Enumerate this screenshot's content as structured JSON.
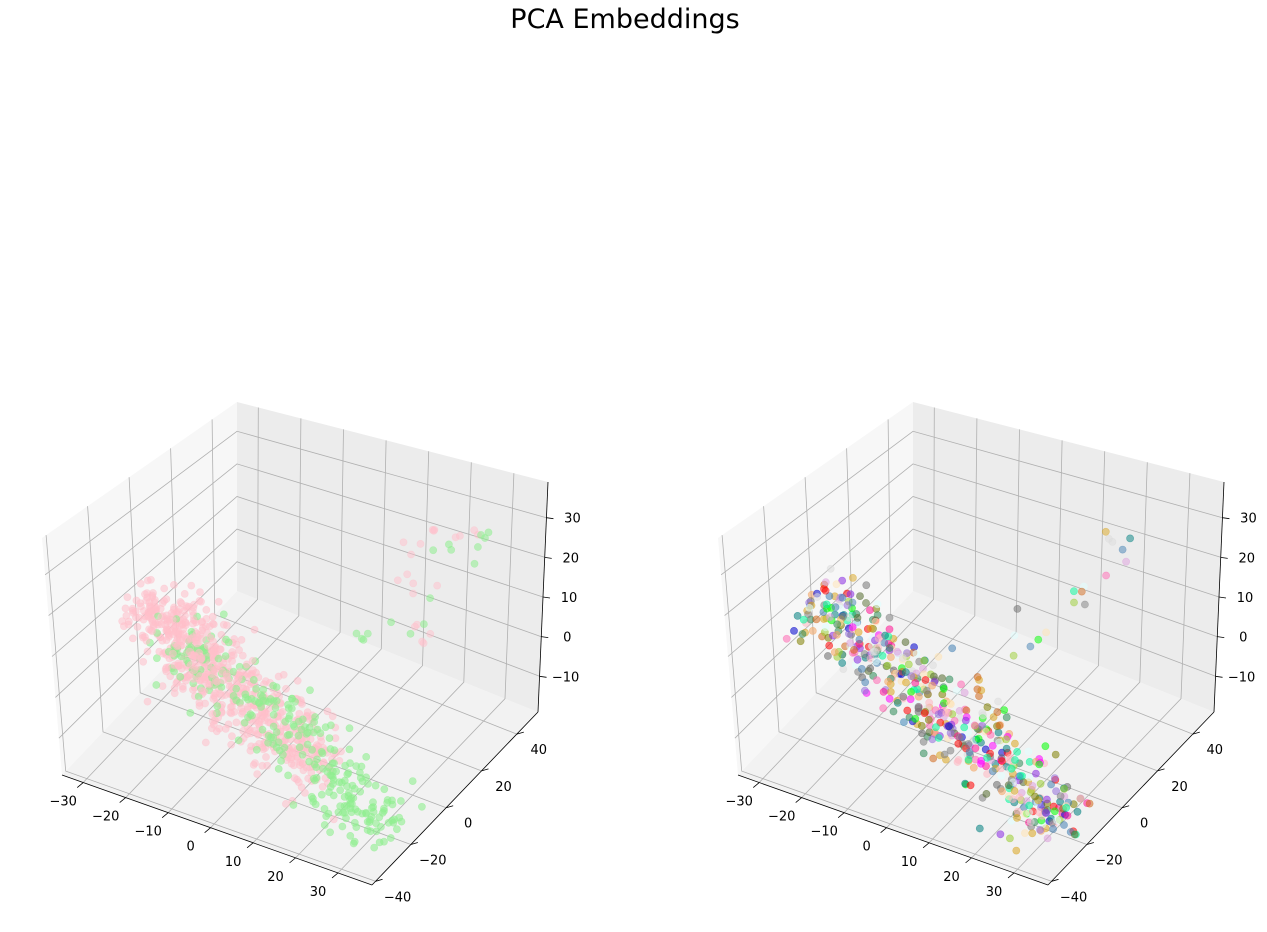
{
  "title": "PCA Embeddings",
  "chart_data": [
    {
      "type": "scatter",
      "projection": "3d",
      "grid": true,
      "xlim": [
        -35,
        38
      ],
      "ylim": [
        -42,
        52
      ],
      "zlim": [
        -19,
        39
      ],
      "xticks": [
        "−30",
        "−20",
        "−10",
        "0",
        "10",
        "20",
        "30"
      ],
      "yticks": [
        "−40",
        "−20",
        "0",
        "20",
        "40"
      ],
      "zticks": [
        "−10",
        "0",
        "10",
        "20",
        "30"
      ],
      "xtick_values": [
        -30,
        -20,
        -10,
        0,
        10,
        20,
        30
      ],
      "ytick_values": [
        -40,
        -20,
        0,
        20,
        40
      ],
      "ztick_values": [
        -10,
        0,
        10,
        20,
        30
      ],
      "series": [
        {
          "color": "#ffc0cb",
          "main_cluster": [
            [
              -30,
              0,
              5
            ],
            [
              -25,
              0,
              3
            ],
            [
              -20,
              -5,
              2
            ],
            [
              -15,
              -8,
              0
            ],
            [
              -10,
              -10,
              -2
            ],
            [
              -5,
              -10,
              -3
            ],
            [
              0,
              -12,
              -4
            ],
            [
              5,
              -15,
              -5
            ],
            [
              10,
              -18,
              -6
            ],
            [
              15,
              -20,
              -7
            ]
          ],
          "outlier_cluster": [
            [
              20,
              30,
              30
            ],
            [
              25,
              35,
              32
            ],
            [
              18,
              28,
              18
            ],
            [
              22,
              25,
              8
            ]
          ]
        },
        {
          "color": "#90ee90",
          "main_cluster": [
            [
              -20,
              -5,
              0
            ],
            [
              -10,
              -8,
              -1
            ],
            [
              0,
              -10,
              -3
            ],
            [
              10,
              -14,
              -6
            ],
            [
              20,
              -18,
              -10
            ],
            [
              25,
              -20,
              -12
            ],
            [
              30,
              -22,
              -14
            ]
          ],
          "outlier_cluster": [
            [
              25,
              30,
              28
            ],
            [
              20,
              20,
              15
            ],
            [
              10,
              20,
              5
            ],
            [
              30,
              32,
              30
            ]
          ]
        }
      ]
    },
    {
      "type": "scatter",
      "projection": "3d",
      "grid": true,
      "xlim": [
        -35,
        38
      ],
      "ylim": [
        -42,
        52
      ],
      "zlim": [
        -19,
        39
      ],
      "xticks": [
        "−30",
        "−20",
        "−10",
        "0",
        "10",
        "20",
        "30"
      ],
      "yticks": [
        "−40",
        "−20",
        "0",
        "20",
        "40"
      ],
      "zticks": [
        "−10",
        "0",
        "10",
        "20",
        "30"
      ],
      "xtick_values": [
        -30,
        -20,
        -10,
        0,
        10,
        20,
        30
      ],
      "ytick_values": [
        -40,
        -20,
        0,
        20,
        40
      ],
      "ztick_values": [
        -10,
        0,
        10,
        20,
        30
      ],
      "series_colors": [
        "#00ff00",
        "#0000cd",
        "#ff00ff",
        "#ff0000",
        "#808000",
        "#8a2be2",
        "#808080",
        "#d2691e",
        "#9acd32",
        "#4682b4",
        "#ff1493",
        "#00fa9a",
        "#daa520",
        "#008080",
        "#ffb6c1",
        "#ffe4b5",
        "#e0ffff",
        "#dcdcdc",
        "#556b2f",
        "#ff69b4",
        "#696969",
        "#9370db",
        "#f4a460",
        "#2e8b57",
        "#dda0dd"
      ],
      "main_cluster": [
        [
          -30,
          0,
          5
        ],
        [
          -20,
          -4,
          2
        ],
        [
          -10,
          -8,
          -1
        ],
        [
          0,
          -11,
          -3
        ],
        [
          10,
          -15,
          -6
        ],
        [
          20,
          -18,
          -9
        ],
        [
          30,
          -22,
          -13
        ]
      ],
      "outlier_cluster": [
        [
          25,
          30,
          30
        ],
        [
          20,
          22,
          18
        ],
        [
          10,
          15,
          8
        ],
        [
          -28,
          5,
          10
        ]
      ]
    }
  ]
}
